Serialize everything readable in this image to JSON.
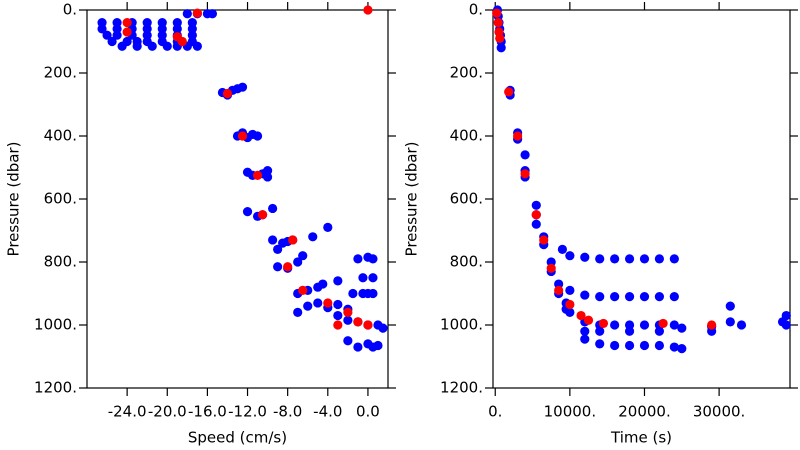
{
  "chart_data": [
    {
      "type": "scatter",
      "xlabel": "Speed (cm/s)",
      "ylabel": "Pressure (dbar)",
      "xlim": [
        -28,
        2
      ],
      "ylim": [
        0,
        1200
      ],
      "y_reversed": true,
      "xticks": [
        {
          "value": -24,
          "label": "-24.0"
        },
        {
          "value": -20,
          "label": "-20.0"
        },
        {
          "value": -16,
          "label": "-16.0"
        },
        {
          "value": -12,
          "label": "-12.0"
        },
        {
          "value": -8,
          "label": "-8.0"
        },
        {
          "value": -4,
          "label": "-4.0"
        },
        {
          "value": 0,
          "label": "0.0"
        }
      ],
      "yticks": [
        {
          "value": 0,
          "label": "0."
        },
        {
          "value": 200,
          "label": "200."
        },
        {
          "value": 400,
          "label": "400."
        },
        {
          "value": 600,
          "label": "600."
        },
        {
          "value": 800,
          "label": "800."
        },
        {
          "value": 1000,
          "label": "1000."
        },
        {
          "value": 1200,
          "label": "1200."
        }
      ],
      "series": [
        {
          "color": "#0000ff",
          "x": [
            -26.5,
            -25,
            -23.5,
            -22,
            -20.5,
            -19,
            -17.5,
            -26.5,
            -25,
            -23.5,
            -22,
            -20.5,
            -19,
            -17.5,
            -26,
            -25,
            -23.5,
            -22,
            -20.5,
            -19,
            -17.5,
            -25.5,
            -24,
            -23,
            -22,
            -20.5,
            -19,
            -17.5,
            -24.5,
            -23,
            -21.5,
            -20,
            -19,
            -18,
            -17,
            -18,
            -17,
            -16,
            -15.5,
            -14.5,
            -14,
            -13.5,
            -13,
            -12.5,
            -13,
            -12.5,
            -12,
            -11.5,
            -11,
            -12,
            -11.5,
            -10.5,
            -10,
            -10,
            -12,
            -11,
            -10.5,
            -9.5,
            -9.5,
            -8.5,
            -8,
            -7.5,
            -9,
            -9,
            -8,
            -7,
            -6.5,
            -5.5,
            -4,
            -7,
            -6,
            -5,
            -4.5,
            -3,
            -6,
            -7,
            -5,
            -4,
            -3,
            -2,
            -1.5,
            -0.5,
            0,
            0.5,
            -3,
            -2,
            -1,
            0,
            1,
            1.5,
            -2,
            -1,
            0,
            0.5,
            1,
            -1,
            0,
            0.5,
            -0.5,
            0.5
          ],
          "y": [
            40,
            40,
            40,
            40,
            40,
            40,
            40,
            60,
            60,
            60,
            60,
            60,
            60,
            60,
            80,
            80,
            80,
            80,
            80,
            80,
            80,
            100,
            100,
            100,
            100,
            100,
            100,
            100,
            115,
            115,
            115,
            115,
            115,
            115,
            115,
            12,
            12,
            12,
            12,
            262,
            270,
            255,
            250,
            245,
            400,
            390,
            405,
            395,
            400,
            515,
            525,
            520,
            510,
            530,
            640,
            655,
            650,
            630,
            730,
            740,
            735,
            730,
            760,
            815,
            820,
            800,
            780,
            720,
            690,
            900,
            890,
            880,
            870,
            860,
            940,
            960,
            930,
            945,
            935,
            950,
            900,
            900,
            900,
            900,
            970,
            985,
            990,
            1000,
            1000,
            1010,
            1050,
            1070,
            1060,
            1070,
            1065,
            790,
            785,
            790,
            850,
            850
          ]
        },
        {
          "color": "#ff0000",
          "x": [
            -24,
            -24,
            -19,
            -18.5,
            -17,
            0,
            -14,
            -12.5,
            -11,
            -10.5,
            -7.5,
            -8,
            -6.5,
            -4,
            -2,
            -1,
            0,
            -3
          ],
          "y": [
            40,
            70,
            85,
            100,
            10,
            0,
            265,
            400,
            525,
            650,
            730,
            815,
            890,
            930,
            960,
            990,
            1000,
            1000
          ]
        }
      ]
    },
    {
      "type": "scatter",
      "xlabel": "Time (s)",
      "ylabel": "Pressure (dbar)",
      "xlim": [
        -300,
        39500
      ],
      "ylim": [
        0,
        1200
      ],
      "y_reversed": true,
      "xticks": [
        {
          "value": 0,
          "label": "0."
        },
        {
          "value": 10000,
          "label": "10000."
        },
        {
          "value": 20000,
          "label": "20000."
        },
        {
          "value": 30000,
          "label": "30000."
        }
      ],
      "yticks": [
        {
          "value": 0,
          "label": "0."
        },
        {
          "value": 200,
          "label": "200."
        },
        {
          "value": 400,
          "label": "400."
        },
        {
          "value": 600,
          "label": "600."
        },
        {
          "value": 800,
          "label": "800."
        },
        {
          "value": 1000,
          "label": "1000."
        },
        {
          "value": 1200,
          "label": "1200."
        }
      ],
      "series": [
        {
          "color": "#0000ff",
          "x": [
            300,
            400,
            500,
            600,
            700,
            800,
            800,
            2000,
            2000,
            3000,
            3000,
            4000,
            4000,
            4000,
            5500,
            5500,
            5500,
            6500,
            6500,
            7500,
            7500,
            8500,
            8500,
            9500,
            9500,
            10000,
            9000,
            10000,
            12000,
            14000,
            16000,
            18000,
            20000,
            22000,
            24000,
            10000,
            12000,
            14000,
            16000,
            18000,
            20000,
            22000,
            24000,
            12000,
            14000,
            16000,
            18000,
            20000,
            22000,
            24000,
            12000,
            14000,
            18000,
            22000,
            25000,
            12000,
            14000,
            16000,
            18000,
            20000,
            22000,
            24000,
            25000,
            29000,
            29000,
            31500,
            31500,
            33000,
            38500,
            39000,
            39000
          ],
          "y": [
            0,
            20,
            40,
            60,
            80,
            100,
            120,
            255,
            270,
            390,
            410,
            510,
            530,
            460,
            620,
            650,
            680,
            720,
            745,
            800,
            830,
            870,
            900,
            930,
            950,
            960,
            760,
            780,
            785,
            790,
            790,
            790,
            790,
            790,
            790,
            890,
            905,
            910,
            910,
            910,
            910,
            910,
            910,
            990,
            1000,
            1000,
            1000,
            1000,
            1000,
            1000,
            1020,
            1020,
            1020,
            1020,
            1010,
            1045,
            1060,
            1065,
            1065,
            1065,
            1065,
            1070,
            1075,
            1005,
            1020,
            990,
            940,
            1000,
            990,
            1000,
            970
          ]
        },
        {
          "color": "#ff0000",
          "x": [
            200,
            400,
            500,
            600,
            1800,
            3000,
            4000,
            5500,
            6500,
            7500,
            8500,
            10000,
            11500,
            12500,
            14500,
            22500,
            29000
          ],
          "y": [
            10,
            40,
            70,
            90,
            260,
            400,
            520,
            650,
            730,
            820,
            890,
            935,
            970,
            985,
            995,
            995,
            1000
          ]
        }
      ]
    }
  ]
}
